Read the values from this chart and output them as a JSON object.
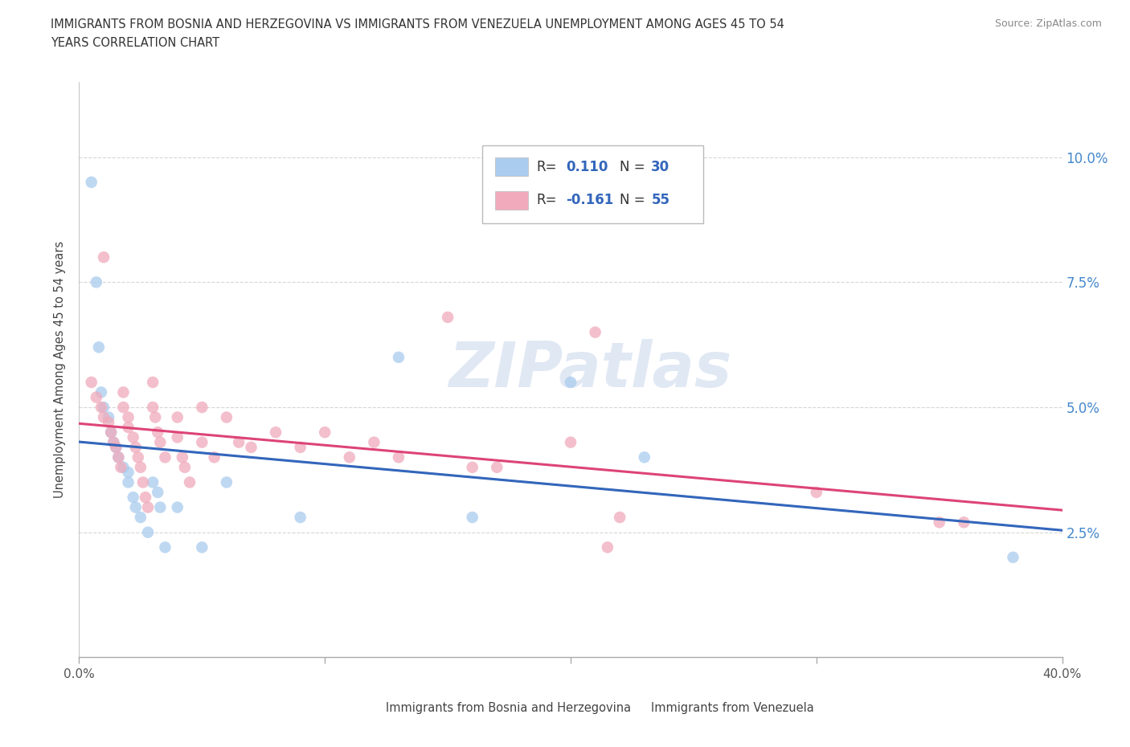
{
  "title_line1": "IMMIGRANTS FROM BOSNIA AND HERZEGOVINA VS IMMIGRANTS FROM VENEZUELA UNEMPLOYMENT AMONG AGES 45 TO 54",
  "title_line2": "YEARS CORRELATION CHART",
  "source": "Source: ZipAtlas.com",
  "ylabel": "Unemployment Among Ages 45 to 54 years",
  "xlim": [
    0.0,
    0.4
  ],
  "ylim": [
    0.0,
    0.115
  ],
  "xticks": [
    0.0,
    0.1,
    0.2,
    0.3,
    0.4
  ],
  "xticklabels": [
    "0.0%",
    "",
    "",
    "",
    "40.0%"
  ],
  "yticks": [
    0.0,
    0.025,
    0.05,
    0.075,
    0.1
  ],
  "yticklabels_right": [
    "",
    "2.5%",
    "5.0%",
    "7.5%",
    "10.0%"
  ],
  "grid_color": "#cccccc",
  "background_color": "#ffffff",
  "bosnia_color": "#aaccee",
  "venezuela_color": "#f0aabb",
  "bosnia_line_color": "#3366bb",
  "venezuela_line_color": "#dd4477",
  "R_bosnia": 0.11,
  "N_bosnia": 30,
  "R_venezuela": -0.161,
  "N_venezuela": 55,
  "bosnia_scatter": [
    [
      0.005,
      0.095
    ],
    [
      0.007,
      0.075
    ],
    [
      0.008,
      0.062
    ],
    [
      0.009,
      0.053
    ],
    [
      0.01,
      0.05
    ],
    [
      0.012,
      0.048
    ],
    [
      0.013,
      0.045
    ],
    [
      0.014,
      0.043
    ],
    [
      0.015,
      0.042
    ],
    [
      0.016,
      0.04
    ],
    [
      0.018,
      0.038
    ],
    [
      0.02,
      0.037
    ],
    [
      0.02,
      0.035
    ],
    [
      0.022,
      0.032
    ],
    [
      0.023,
      0.03
    ],
    [
      0.025,
      0.028
    ],
    [
      0.028,
      0.025
    ],
    [
      0.03,
      0.035
    ],
    [
      0.032,
      0.033
    ],
    [
      0.033,
      0.03
    ],
    [
      0.035,
      0.022
    ],
    [
      0.04,
      0.03
    ],
    [
      0.05,
      0.022
    ],
    [
      0.06,
      0.035
    ],
    [
      0.09,
      0.028
    ],
    [
      0.13,
      0.06
    ],
    [
      0.16,
      0.028
    ],
    [
      0.2,
      0.055
    ],
    [
      0.23,
      0.04
    ],
    [
      0.38,
      0.02
    ]
  ],
  "venezuela_scatter": [
    [
      0.005,
      0.055
    ],
    [
      0.007,
      0.052
    ],
    [
      0.009,
      0.05
    ],
    [
      0.01,
      0.08
    ],
    [
      0.01,
      0.048
    ],
    [
      0.012,
      0.047
    ],
    [
      0.013,
      0.045
    ],
    [
      0.014,
      0.043
    ],
    [
      0.015,
      0.042
    ],
    [
      0.016,
      0.04
    ],
    [
      0.017,
      0.038
    ],
    [
      0.018,
      0.053
    ],
    [
      0.018,
      0.05
    ],
    [
      0.02,
      0.048
    ],
    [
      0.02,
      0.046
    ],
    [
      0.022,
      0.044
    ],
    [
      0.023,
      0.042
    ],
    [
      0.024,
      0.04
    ],
    [
      0.025,
      0.038
    ],
    [
      0.026,
      0.035
    ],
    [
      0.027,
      0.032
    ],
    [
      0.028,
      0.03
    ],
    [
      0.03,
      0.055
    ],
    [
      0.03,
      0.05
    ],
    [
      0.031,
      0.048
    ],
    [
      0.032,
      0.045
    ],
    [
      0.033,
      0.043
    ],
    [
      0.035,
      0.04
    ],
    [
      0.04,
      0.048
    ],
    [
      0.04,
      0.044
    ],
    [
      0.042,
      0.04
    ],
    [
      0.043,
      0.038
    ],
    [
      0.045,
      0.035
    ],
    [
      0.05,
      0.05
    ],
    [
      0.05,
      0.043
    ],
    [
      0.055,
      0.04
    ],
    [
      0.06,
      0.048
    ],
    [
      0.065,
      0.043
    ],
    [
      0.07,
      0.042
    ],
    [
      0.08,
      0.045
    ],
    [
      0.09,
      0.042
    ],
    [
      0.1,
      0.045
    ],
    [
      0.11,
      0.04
    ],
    [
      0.12,
      0.043
    ],
    [
      0.13,
      0.04
    ],
    [
      0.15,
      0.068
    ],
    [
      0.16,
      0.038
    ],
    [
      0.17,
      0.038
    ],
    [
      0.2,
      0.043
    ],
    [
      0.21,
      0.065
    ],
    [
      0.215,
      0.022
    ],
    [
      0.22,
      0.028
    ],
    [
      0.3,
      0.033
    ],
    [
      0.35,
      0.027
    ],
    [
      0.36,
      0.027
    ]
  ],
  "watermark": "ZIPatlas",
  "bottom_legend": [
    {
      "label": "Immigrants from Bosnia and Herzegovina",
      "color": "#aaccee"
    },
    {
      "label": "Immigrants from Venezuela",
      "color": "#f0aabb"
    }
  ]
}
